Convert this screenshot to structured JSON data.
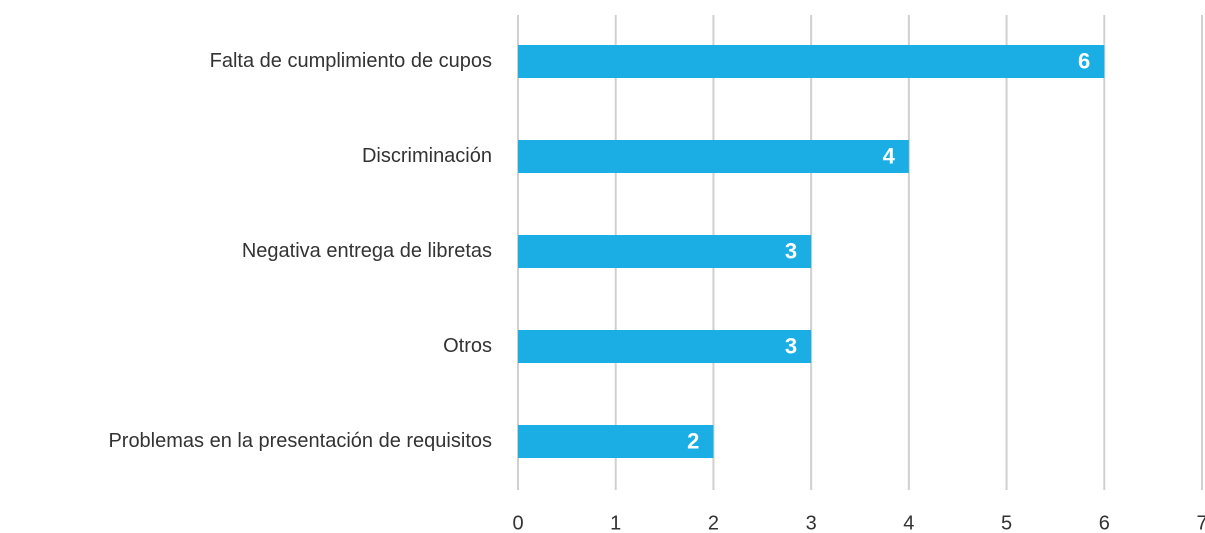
{
  "chart_data": {
    "type": "hbar",
    "categories": [
      "Falta de cumplimiento de cupos",
      "Discriminación",
      "Negativa entrega de libretas",
      "Otros",
      "Problemas en la presentación de requisitos"
    ],
    "values": [
      6,
      4,
      3,
      3,
      2
    ],
    "color": "#1aaee5",
    "xlim": [
      0,
      7
    ],
    "xticks": [
      0,
      1,
      2,
      3,
      4,
      5,
      6,
      7
    ],
    "grid": true
  }
}
